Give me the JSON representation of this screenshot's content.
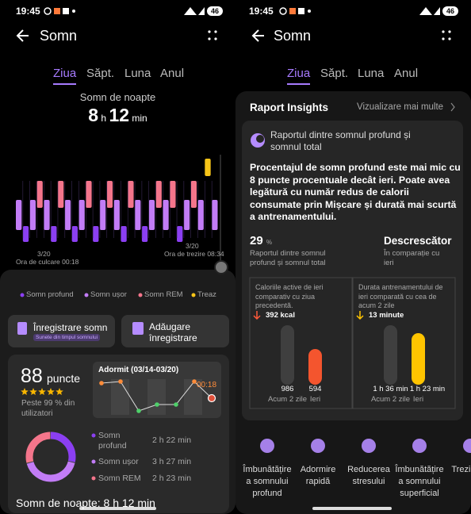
{
  "left": {
    "status_time": "19:45",
    "battery": "46",
    "title": "Somn",
    "tabs": [
      "Ziua",
      "Săpt.",
      "Luna",
      "Anul"
    ],
    "summary": {
      "label": "Somn de noapte",
      "hours": "8",
      "h": "h",
      "minutes": "12",
      "min": "min"
    },
    "hypnogram": {
      "start_date": "3/20",
      "start_label": "Ora de culcare 00:18",
      "end_date": "3/20",
      "end_label": "Ora de trezire 08:34"
    },
    "legend": [
      "Somn profund",
      "Somn ușor",
      "Somn REM",
      "Treaz"
    ],
    "buttons": [
      {
        "label": "Înregistrare somn",
        "sub": "Sunete din timpul somnului"
      },
      {
        "label": "Adăugare înregistrare"
      }
    ],
    "score": {
      "value": "88",
      "unit": "puncte",
      "percentile": "Peste 99 % din utilizatori",
      "chart_title": "Adormit (03/14-03/20)",
      "chart_time": "00:18",
      "stages": [
        {
          "name": "Somn profund",
          "duration": "2 h 22 min"
        },
        {
          "name": "Somn ușor",
          "duration": "3 h 27 min"
        },
        {
          "name": "Somn REM",
          "duration": "2 h 23 min"
        }
      ],
      "total": "Somn de noapte: 8 h 12 min"
    }
  },
  "right": {
    "status_time": "19:45",
    "battery": "46",
    "title": "Somn",
    "tabs": [
      "Ziua",
      "Săpt.",
      "Luna",
      "Anul"
    ],
    "insights": {
      "title": "Raport Insights",
      "more": "Vizualizare mai multe",
      "card_title": "Raportul dintre somnul profund și somnul total",
      "text": "Procentajul de somn profund este mai mic cu 8 puncte procentuale decât ieri. Poate avea legătură cu număr redus de calorii consumate prin Mișcare și durată mai scurtă a antrenamentului.",
      "ratio": {
        "value": "29",
        "unit": "%",
        "label": "Raportul dintre somnul profund și somnul total"
      },
      "trend": {
        "value": "Descrescător",
        "label": "În comparație cu ieri"
      },
      "comparisons": [
        {
          "text": "Caloriile active de ieri comparativ cu ziua precedentă.",
          "change": "392 kcal",
          "bars": [
            {
              "value": "986",
              "label": "Acum 2 zile"
            },
            {
              "value": "594",
              "label": "Ieri"
            }
          ]
        },
        {
          "text": "Durata antrenamentului de ieri comparată cu cea de acum 2 zile",
          "change": "13 minute",
          "bars": [
            {
              "value": "1 h 36 min",
              "label": "Acum 2 zile"
            },
            {
              "value": "1 h 23 min",
              "label": "Ieri"
            }
          ]
        }
      ]
    },
    "tips": [
      "Îmbunătățire a somnului profund",
      "Adormire rapidă",
      "Reducerea stresului",
      "Îmbunătățire a somnului superficial",
      "Trezi dimi"
    ]
  }
}
